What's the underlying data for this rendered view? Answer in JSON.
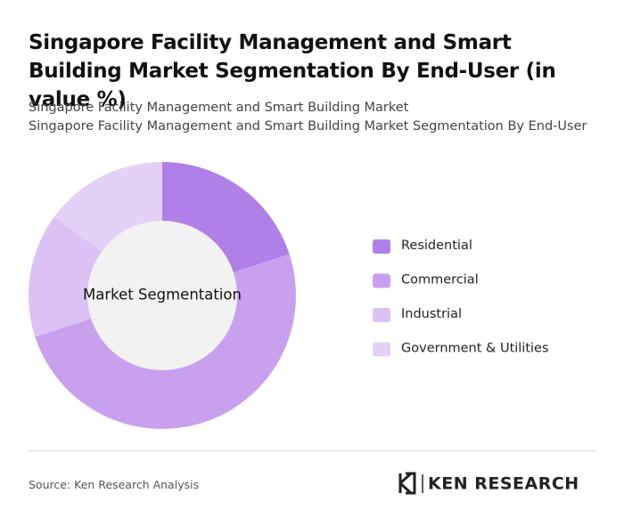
{
  "title": "Singapore Facility Management and Smart Building Market Segmentation By End-User (in value %)",
  "subtitle_lines": [
    "Singapore Facility Management and Smart Building Market",
    "Singapore Facility Management and Smart Building Market Segmentation By End-User"
  ],
  "chart_data": {
    "type": "donut",
    "center_label": "Market Segmentation",
    "categories": [
      "Residential",
      "Commercial",
      "Industrial",
      "Government & Utilities"
    ],
    "values": [
      20,
      50,
      15,
      15
    ],
    "colors": [
      "#b07fe8",
      "#c9a0ee",
      "#dcc2f4",
      "#e4d2f6"
    ],
    "legend": "right"
  },
  "source": "Source: Ken Research Analysis",
  "logo": "KEN RESEARCH"
}
